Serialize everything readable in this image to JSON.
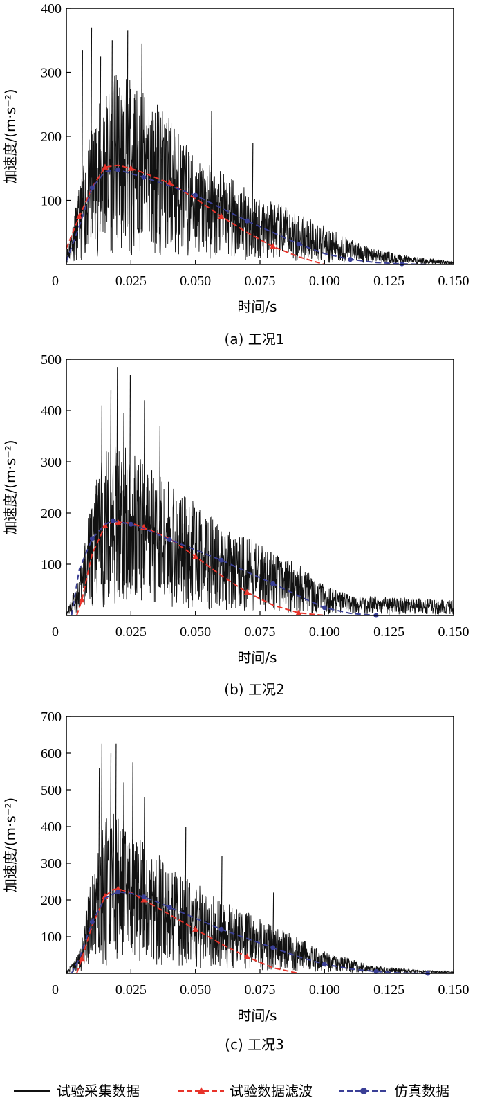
{
  "colors": {
    "raw": "#111111",
    "filtered": "#e8332a",
    "simulation": "#3a3f96",
    "frame": "#000000"
  },
  "legend": {
    "items": [
      {
        "label": "试验采集数据",
        "style": "solid",
        "marker": "none"
      },
      {
        "label": "试验数据滤波",
        "style": "dashed",
        "marker": "triangle"
      },
      {
        "label": "仿真数据",
        "style": "dashed",
        "marker": "circle"
      }
    ]
  },
  "chart_data": [
    {
      "type": "line",
      "caption": "(a) 工况1",
      "xlabel": "时间/s",
      "ylabel": "加速度/(m·s⁻²)",
      "xlim": [
        0,
        0.15
      ],
      "ylim": [
        0,
        400
      ],
      "xticks": [
        "0",
        "0.025",
        "0.050",
        "0.075",
        "0.100",
        "0.125",
        "0.150"
      ],
      "yticks": [
        "100",
        "200",
        "300",
        "400"
      ],
      "raw_envelope": [
        [
          0,
          20
        ],
        [
          0.01,
          220
        ],
        [
          0.015,
          280
        ],
        [
          0.02,
          300
        ],
        [
          0.025,
          290
        ],
        [
          0.04,
          230
        ],
        [
          0.05,
          170
        ],
        [
          0.075,
          110
        ],
        [
          0.1,
          60
        ],
        [
          0.115,
          30
        ],
        [
          0.13,
          15
        ],
        [
          0.15,
          5
        ]
      ],
      "raw_spikes": [
        [
          0.006,
          335
        ],
        [
          0.0095,
          370
        ],
        [
          0.013,
          325
        ],
        [
          0.0175,
          350
        ],
        [
          0.0235,
          365
        ],
        [
          0.029,
          345
        ],
        [
          0.035,
          250
        ],
        [
          0.056,
          240
        ],
        [
          0.072,
          190
        ]
      ],
      "series": [
        {
          "name": "试验数据滤波",
          "x": [
            0,
            0.005,
            0.01,
            0.015,
            0.02,
            0.025,
            0.03,
            0.04,
            0.05,
            0.06,
            0.07,
            0.08,
            0.09,
            0.1
          ],
          "y": [
            25,
            75,
            120,
            152,
            155,
            150,
            143,
            127,
            103,
            75,
            50,
            28,
            12,
            0
          ]
        },
        {
          "name": "仿真数据",
          "x": [
            0,
            0.005,
            0.01,
            0.015,
            0.02,
            0.025,
            0.03,
            0.04,
            0.05,
            0.06,
            0.07,
            0.08,
            0.09,
            0.1,
            0.11,
            0.12,
            0.13,
            0.14
          ],
          "y": [
            5,
            60,
            120,
            145,
            148,
            142,
            136,
            123,
            108,
            88,
            68,
            50,
            32,
            17,
            8,
            3,
            1,
            0
          ]
        }
      ]
    },
    {
      "type": "line",
      "caption": "(b) 工况2",
      "xlabel": "时间/s",
      "ylabel": "加速度/(m·s⁻²)",
      "xlim": [
        0,
        0.15
      ],
      "ylim": [
        0,
        500
      ],
      "xticks": [
        "0",
        "0.025",
        "0.050",
        "0.075",
        "0.100",
        "0.125",
        "0.150"
      ],
      "yticks": [
        "100",
        "200",
        "300",
        "400",
        "500"
      ],
      "raw_envelope": [
        [
          0,
          5
        ],
        [
          0.005,
          80
        ],
        [
          0.01,
          240
        ],
        [
          0.015,
          330
        ],
        [
          0.02,
          340
        ],
        [
          0.03,
          300
        ],
        [
          0.04,
          260
        ],
        [
          0.05,
          220
        ],
        [
          0.06,
          180
        ],
        [
          0.075,
          140
        ],
        [
          0.09,
          100
        ],
        [
          0.1,
          60
        ],
        [
          0.11,
          40
        ],
        [
          0.15,
          30
        ]
      ],
      "raw_spikes": [
        [
          0.0135,
          410
        ],
        [
          0.017,
          440
        ],
        [
          0.0195,
          485
        ],
        [
          0.022,
          395
        ],
        [
          0.0245,
          470
        ],
        [
          0.03,
          420
        ],
        [
          0.036,
          370
        ]
      ],
      "series": [
        {
          "name": "试验数据滤波",
          "x": [
            0.004,
            0.006,
            0.01,
            0.015,
            0.018,
            0.02,
            0.025,
            0.03,
            0.04,
            0.05,
            0.06,
            0.07,
            0.08,
            0.09,
            0.1
          ],
          "y": [
            0,
            30,
            120,
            175,
            183,
            182,
            180,
            172,
            150,
            115,
            78,
            45,
            20,
            5,
            0
          ]
        },
        {
          "name": "仿真数据",
          "x": [
            0.002,
            0.005,
            0.01,
            0.015,
            0.018,
            0.02,
            0.025,
            0.03,
            0.04,
            0.05,
            0.06,
            0.07,
            0.08,
            0.09,
            0.1,
            0.11,
            0.12
          ],
          "y": [
            0,
            90,
            150,
            178,
            185,
            183,
            178,
            170,
            148,
            128,
            108,
            85,
            62,
            38,
            15,
            4,
            0
          ]
        }
      ]
    },
    {
      "type": "line",
      "caption": "(c) 工况3",
      "xlabel": "时间/s",
      "ylabel": "加速度/(m·s⁻²)",
      "xlim": [
        0,
        0.15
      ],
      "ylim": [
        0,
        700
      ],
      "xticks": [
        "0",
        "0.025",
        "0.050",
        "0.075",
        "0.100",
        "0.125",
        "0.150"
      ],
      "yticks": [
        "100",
        "200",
        "300",
        "400",
        "500",
        "600",
        "700"
      ],
      "raw_envelope": [
        [
          0,
          5
        ],
        [
          0.005,
          60
        ],
        [
          0.01,
          280
        ],
        [
          0.015,
          430
        ],
        [
          0.02,
          440
        ],
        [
          0.025,
          400
        ],
        [
          0.03,
          360
        ],
        [
          0.04,
          300
        ],
        [
          0.05,
          250
        ],
        [
          0.06,
          200
        ],
        [
          0.075,
          150
        ],
        [
          0.09,
          100
        ],
        [
          0.1,
          60
        ],
        [
          0.11,
          40
        ],
        [
          0.12,
          20
        ],
        [
          0.135,
          10
        ],
        [
          0.15,
          5
        ]
      ],
      "raw_spikes": [
        [
          0.0125,
          560
        ],
        [
          0.0135,
          625
        ],
        [
          0.017,
          600
        ],
        [
          0.019,
          625
        ],
        [
          0.022,
          520
        ],
        [
          0.0255,
          575
        ],
        [
          0.03,
          480
        ],
        [
          0.046,
          400
        ],
        [
          0.06,
          320
        ],
        [
          0.08,
          220
        ]
      ],
      "series": [
        {
          "name": "试验数据滤波",
          "x": [
            0.004,
            0.006,
            0.01,
            0.015,
            0.018,
            0.02,
            0.025,
            0.03,
            0.04,
            0.05,
            0.06,
            0.07,
            0.08,
            0.09
          ],
          "y": [
            0,
            40,
            130,
            210,
            228,
            230,
            220,
            200,
            160,
            120,
            80,
            45,
            15,
            0
          ]
        },
        {
          "name": "仿真数据",
          "x": [
            0.002,
            0.005,
            0.01,
            0.015,
            0.02,
            0.025,
            0.03,
            0.035,
            0.04,
            0.05,
            0.06,
            0.07,
            0.08,
            0.09,
            0.1,
            0.11,
            0.12,
            0.13,
            0.14
          ],
          "y": [
            0,
            40,
            140,
            205,
            222,
            218,
            208,
            195,
            180,
            150,
            120,
            95,
            70,
            45,
            25,
            12,
            5,
            1,
            0
          ]
        }
      ]
    }
  ]
}
